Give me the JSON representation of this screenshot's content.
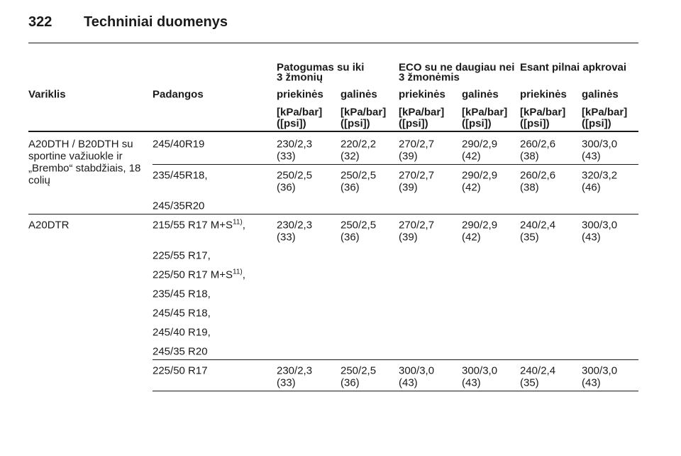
{
  "header": {
    "page": "322",
    "title": "Techniniai duomenys"
  },
  "table": {
    "columns": {
      "engine": "Variklis",
      "tires": "Padangos",
      "groups": [
        [
          "Patogumas su iki",
          "3 žmonių"
        ],
        [
          "ECO su ne daugiau nei",
          "3 žmonėmis"
        ],
        [
          "Esant pilnai apkrovai"
        ]
      ],
      "sub": [
        "priekinės",
        "galinės",
        "priekinės",
        "galinės",
        "priekinės",
        "galinės"
      ],
      "units": [
        [
          "[kPa/bar]",
          "([psi])"
        ],
        [
          "[kPa/bar]",
          "([psi])"
        ],
        [
          "[kPa/bar]",
          "([psi])"
        ],
        [
          "[kPa/bar]",
          "([psi])"
        ],
        [
          "[kPa/bar]",
          "([psi])"
        ],
        [
          "[kPa/bar]",
          "([psi])"
        ]
      ]
    },
    "groups": [
      {
        "engine": [
          "A20DTH / B20DTH su",
          "sportine važiuokle ir",
          "„Brembo“ stabdžiais, 18",
          "colių"
        ],
        "rows": [
          {
            "tires": [
              "245/40R19"
            ],
            "values": [
              [
                "230/2,3",
                "(33)"
              ],
              [
                "220/2,2",
                "(32)"
              ],
              [
                "270/2,7",
                "(39)"
              ],
              [
                "290/2,9",
                "(42)"
              ],
              [
                "260/2,6",
                "(38)"
              ],
              [
                "300/3,0",
                "(43)"
              ]
            ]
          },
          {
            "tires": [
              "235/45R18,",
              "245/35R20"
            ],
            "values": [
              [
                "250/2,5",
                "(36)"
              ],
              [
                "250/2,5",
                "(36)"
              ],
              [
                "270/2,7",
                "(39)"
              ],
              [
                "290/2,9",
                "(42)"
              ],
              [
                "260/2,6",
                "(38)"
              ],
              [
                "320/3,2",
                "(46)"
              ]
            ]
          }
        ]
      },
      {
        "engine": [
          "A20DTR"
        ],
        "rows": [
          {
            "tires": [
              {
                "text": "215/55 R17 M+S",
                "note": "11)",
                "suffix": ","
              },
              "225/55 R17,",
              {
                "text": "225/50 R17 M+S",
                "note": "11)",
                "suffix": ","
              },
              "235/45 R18,",
              "245/45 R18,",
              "245/40 R19,",
              "245/35 R20"
            ],
            "values": [
              [
                "230/2,3",
                "(33)"
              ],
              [
                "250/2,5",
                "(36)"
              ],
              [
                "270/2,7",
                "(39)"
              ],
              [
                "290/2,9",
                "(42)"
              ],
              [
                "240/2,4",
                "(35)"
              ],
              [
                "300/3,0",
                "(43)"
              ]
            ]
          },
          {
            "tires": [
              "225/50 R17"
            ],
            "values": [
              [
                "230/2,3",
                "(33)"
              ],
              [
                "250/2,5",
                "(36)"
              ],
              [
                "300/3,0",
                "(43)"
              ],
              [
                "300/3,0",
                "(43)"
              ],
              [
                "240/2,4",
                "(35)"
              ],
              [
                "300/3,0",
                "(43)"
              ]
            ]
          }
        ]
      }
    ]
  }
}
